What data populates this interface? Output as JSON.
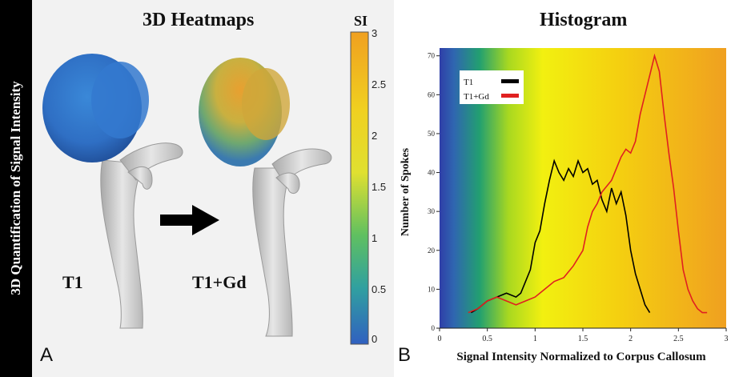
{
  "side_title": "3D Quantification of Signal Intensity",
  "panel_a": {
    "title": "3D Heatmaps",
    "letter": "A",
    "label_left": "T1",
    "label_right": "T1+Gd",
    "colorbar": {
      "label": "SI",
      "ticks": [
        "3",
        "2.5",
        "2",
        "1.5",
        "1",
        "0.5",
        "0"
      ],
      "colors": [
        "#f0a020",
        "#f0d020",
        "#e0e030",
        "#60c060",
        "#30a0a0",
        "#3060c0"
      ]
    }
  },
  "panel_b": {
    "title": "Histogram",
    "letter": "B"
  },
  "chart_data": {
    "type": "line",
    "title": "Histogram",
    "xlabel": "Signal Intensity Normalized to Corpus Callosum",
    "ylabel": "Number of Spokes",
    "xlim": [
      0,
      3
    ],
    "ylim": [
      0,
      72
    ],
    "xticks": [
      "0",
      "0.5",
      "1",
      "1.5",
      "2",
      "2.5",
      "3"
    ],
    "yticks": [
      "0",
      "10",
      "20",
      "30",
      "40",
      "50",
      "60",
      "70"
    ],
    "legend": "top-left",
    "series": [
      {
        "name": "T1",
        "color": "#000000",
        "points": [
          [
            0.33,
            4
          ],
          [
            0.4,
            5
          ],
          [
            0.5,
            7
          ],
          [
            0.6,
            8
          ],
          [
            0.7,
            9
          ],
          [
            0.8,
            8
          ],
          [
            0.85,
            9
          ],
          [
            0.9,
            12
          ],
          [
            0.95,
            15
          ],
          [
            1.0,
            22
          ],
          [
            1.05,
            25
          ],
          [
            1.1,
            32
          ],
          [
            1.15,
            38
          ],
          [
            1.2,
            43
          ],
          [
            1.25,
            40
          ],
          [
            1.3,
            38
          ],
          [
            1.35,
            41
          ],
          [
            1.4,
            39
          ],
          [
            1.45,
            43
          ],
          [
            1.5,
            40
          ],
          [
            1.55,
            41
          ],
          [
            1.6,
            37
          ],
          [
            1.65,
            38
          ],
          [
            1.7,
            33
          ],
          [
            1.75,
            30
          ],
          [
            1.8,
            36
          ],
          [
            1.85,
            32
          ],
          [
            1.9,
            35
          ],
          [
            1.95,
            29
          ],
          [
            2.0,
            20
          ],
          [
            2.05,
            14
          ],
          [
            2.1,
            10
          ],
          [
            2.15,
            6
          ],
          [
            2.2,
            4
          ]
        ]
      },
      {
        "name": "T1+Gd",
        "color": "#e02020",
        "points": [
          [
            0.3,
            4
          ],
          [
            0.4,
            5
          ],
          [
            0.5,
            7
          ],
          [
            0.6,
            8
          ],
          [
            0.7,
            7
          ],
          [
            0.8,
            6
          ],
          [
            0.9,
            7
          ],
          [
            1.0,
            8
          ],
          [
            1.1,
            10
          ],
          [
            1.2,
            12
          ],
          [
            1.3,
            13
          ],
          [
            1.4,
            16
          ],
          [
            1.5,
            20
          ],
          [
            1.55,
            26
          ],
          [
            1.6,
            30
          ],
          [
            1.65,
            32
          ],
          [
            1.7,
            35
          ],
          [
            1.8,
            38
          ],
          [
            1.9,
            44
          ],
          [
            1.95,
            46
          ],
          [
            2.0,
            45
          ],
          [
            2.05,
            48
          ],
          [
            2.1,
            55
          ],
          [
            2.15,
            60
          ],
          [
            2.2,
            65
          ],
          [
            2.25,
            70
          ],
          [
            2.3,
            66
          ],
          [
            2.35,
            55
          ],
          [
            2.4,
            45
          ],
          [
            2.45,
            36
          ],
          [
            2.5,
            25
          ],
          [
            2.55,
            15
          ],
          [
            2.6,
            10
          ],
          [
            2.65,
            7
          ],
          [
            2.7,
            5
          ],
          [
            2.75,
            4
          ],
          [
            2.8,
            4
          ]
        ]
      }
    ]
  }
}
